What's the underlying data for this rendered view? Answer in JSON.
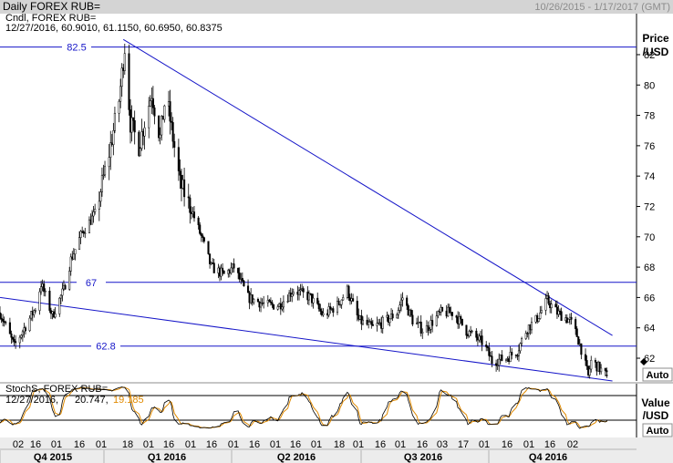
{
  "header": {
    "title": "Daily FOREX RUB=",
    "date_range": "10/26/2015 - 1/17/2017 (GMT)",
    "main_ohlc_line": "12/27/2016, 60.9010, 61.1150, 60.6950, 60.8375",
    "main_series_label": "Cndl, FOREX RUB="
  },
  "y_axis_main": {
    "label": "Price",
    "unit": "/USD",
    "ticks": [
      "82",
      "80",
      "78",
      "76",
      "74",
      "72",
      "70",
      "68",
      "66",
      "64",
      "62"
    ],
    "auto_button": "Auto"
  },
  "stoch_panel": {
    "label": "StochS, FOREX RUB=",
    "date": "12/27/2016,",
    "k_value": "20.747,",
    "d_value": "19.185",
    "axis_label": "Value",
    "axis_unit": "/USD",
    "auto_button": "Auto",
    "k_color": "#000000",
    "d_color": "#e08a00"
  },
  "x_axis": {
    "day_ticks": [
      "02",
      "16",
      "01",
      "16",
      "01",
      "18",
      "01",
      "16",
      "01",
      "16",
      "01",
      "16",
      "01",
      "16",
      "01",
      "18",
      "01",
      "16",
      "01",
      "16",
      "03",
      "17",
      "01",
      "16",
      "01",
      "16",
      "02"
    ],
    "quarters": [
      "Q4 2015",
      "Q1 2016",
      "Q2 2016",
      "Q3 2016",
      "Q4 2016"
    ]
  },
  "colors": {
    "line_blue": "#1515c8",
    "candle": "#000000",
    "tab_bg": "#d4d4d4"
  },
  "chart_data": {
    "type": "candlestick",
    "title": "Daily FOREX RUB=",
    "x_range": [
      "2015-10-26",
      "2017-01-17"
    ],
    "ylim": [
      60.5,
      84.7
    ],
    "price_path": [
      [
        "2015-10-26",
        65.0
      ],
      [
        "2015-11-05",
        62.8
      ],
      [
        "2015-11-20",
        65.3
      ],
      [
        "2015-11-24",
        66.9
      ],
      [
        "2015-12-02",
        64.8
      ],
      [
        "2015-12-10",
        66.5
      ],
      [
        "2015-12-15",
        68.5
      ],
      [
        "2015-12-23",
        70.3
      ],
      [
        "2016-01-01",
        71.5
      ],
      [
        "2016-01-11",
        75.5
      ],
      [
        "2016-01-18",
        79.0
      ],
      [
        "2016-01-22",
        82.5
      ],
      [
        "2016-01-26",
        77.5
      ],
      [
        "2016-02-01",
        76.0
      ],
      [
        "2016-02-10",
        79.5
      ],
      [
        "2016-02-16",
        76.5
      ],
      [
        "2016-02-20",
        79.5
      ],
      [
        "2016-03-01",
        73.5
      ],
      [
        "2016-03-09",
        71.8
      ],
      [
        "2016-03-16",
        70.0
      ],
      [
        "2016-03-23",
        68.0
      ],
      [
        "2016-04-01",
        67.5
      ],
      [
        "2016-04-08",
        68.0
      ],
      [
        "2016-04-18",
        66.0
      ],
      [
        "2016-05-01",
        65.5
      ],
      [
        "2016-05-10",
        65.5
      ],
      [
        "2016-05-20",
        66.5
      ],
      [
        "2016-06-01",
        66.0
      ],
      [
        "2016-06-10",
        64.8
      ],
      [
        "2016-06-20",
        65.5
      ],
      [
        "2016-06-27",
        66.5
      ],
      [
        "2016-07-05",
        64.5
      ],
      [
        "2016-07-15",
        64.0
      ],
      [
        "2016-07-25",
        64.5
      ],
      [
        "2016-08-01",
        65.0
      ],
      [
        "2016-08-05",
        66.0
      ],
      [
        "2016-08-12",
        64.5
      ],
      [
        "2016-08-20",
        63.8
      ],
      [
        "2016-09-01",
        65.0
      ],
      [
        "2016-09-10",
        65.0
      ],
      [
        "2016-09-19",
        63.8
      ],
      [
        "2016-10-01",
        63.0
      ],
      [
        "2016-10-07",
        61.8
      ],
      [
        "2016-10-17",
        62.0
      ],
      [
        "2016-10-25",
        62.5
      ],
      [
        "2016-11-01",
        64.0
      ],
      [
        "2016-11-07",
        64.5
      ],
      [
        "2016-11-15",
        65.8
      ],
      [
        "2016-11-22",
        65.0
      ],
      [
        "2016-11-29",
        64.6
      ],
      [
        "2016-12-01",
        64.5
      ],
      [
        "2016-12-06",
        63.5
      ],
      [
        "2016-12-09",
        62.6
      ],
      [
        "2016-12-14",
        60.8
      ],
      [
        "2016-12-16",
        61.8
      ],
      [
        "2016-12-20",
        61.5
      ],
      [
        "2016-12-27",
        60.84
      ]
    ],
    "last_bar": {
      "date": "2016-12-27",
      "open": 60.901,
      "high": 61.115,
      "low": 60.695,
      "close": 60.8375
    },
    "horizontal_lines": [
      {
        "value": 82.5,
        "label": "82.5"
      },
      {
        "value": 67,
        "label": "67"
      },
      {
        "value": 62.8,
        "label": "62.8"
      }
    ],
    "trend_lines": [
      {
        "from": [
          "2016-01-21",
          83.0
        ],
        "to": [
          "2016-12-31",
          63.5
        ]
      },
      {
        "from": [
          "2015-10-26",
          66.0
        ],
        "to": [
          "2016-12-31",
          60.5
        ]
      }
    ],
    "stochastic": {
      "ylim": [
        0,
        100
      ],
      "levels": [
        80,
        20
      ],
      "last": {
        "k": 20.747,
        "d": 19.185
      }
    }
  }
}
